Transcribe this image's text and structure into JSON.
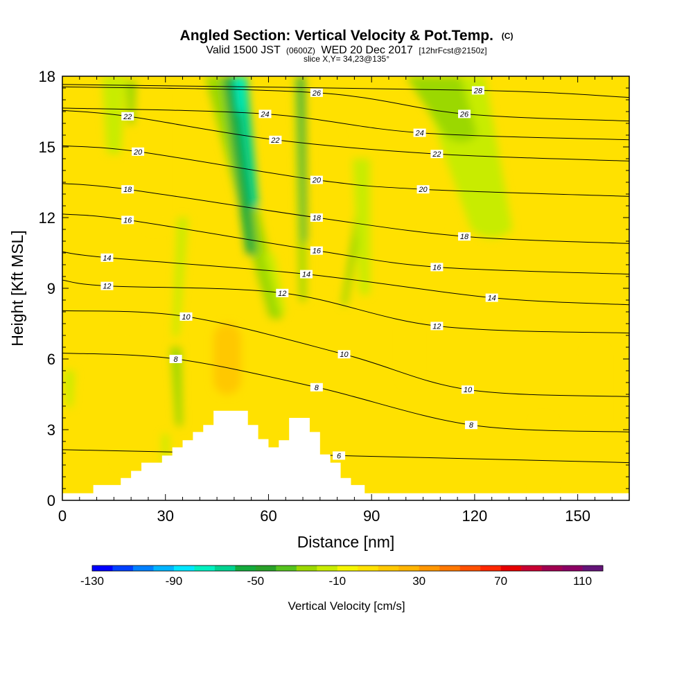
{
  "header": {
    "title": "Angled Section: Vertical Velocity & Pot.Temp.",
    "title_unit": "(C)",
    "valid_prefix": "Valid 1500 JST",
    "valid_utc": "(0600Z)",
    "valid_date": "WED 20 Dec 2017",
    "forecast": "[12hrFcst@2150z]",
    "slice": "slice X,Y= 34,23@135°"
  },
  "chart_data": {
    "type": "heatmap",
    "title": "Angled Section: Vertical Velocity & Pot.Temp.",
    "xlabel": "Distance [nm]",
    "ylabel": "Height [Kft MSL]",
    "xlim": [
      0,
      165
    ],
    "ylim": [
      0,
      18
    ],
    "xticks": [
      0,
      30,
      60,
      90,
      120,
      150
    ],
    "yticks": [
      0,
      3,
      6,
      9,
      12,
      15,
      18
    ],
    "background_value": 0,
    "colors": {
      "plus10": "#ffe100",
      "plus20": "#ffc800",
      "minus10": "#c8ec00",
      "minus20": "#9bd800",
      "minus30": "#55c21e",
      "minus40": "#14aa3c",
      "minus50": "#00d290",
      "minus60": "#00f0c0"
    },
    "updraft_bands": [
      {
        "x": 18,
        "ylo": 1.5,
        "yhi": 7.5,
        "w": 4,
        "value": 15
      },
      {
        "x": 27,
        "ylo": 11.5,
        "yhi": 17.5,
        "w": 4,
        "value": 12
      },
      {
        "x": 48,
        "ylo": 4.5,
        "yhi": 7.5,
        "w": 8,
        "value": 25
      },
      {
        "x": 59,
        "ylo": 2.5,
        "yhi": 9.0,
        "w": 4,
        "value": 12
      },
      {
        "x": 79,
        "ylo": 9.5,
        "yhi": 15.5,
        "w": 3,
        "value": 12
      },
      {
        "x": 101,
        "ylo": 5.0,
        "yhi": 7.5,
        "w": 4,
        "value": 12
      },
      {
        "x": 107,
        "ylo": 11.5,
        "yhi": 16.0,
        "w": 3,
        "value": 14
      },
      {
        "x": 118,
        "ylo": 12.5,
        "yhi": 15.5,
        "w": 3,
        "value": 12
      },
      {
        "x": 140,
        "ylo": 0.5,
        "yhi": 3.5,
        "w": 5,
        "value": 12
      },
      {
        "x": 155,
        "ylo": 3.0,
        "yhi": 6.5,
        "w": 5,
        "value": 12
      }
    ],
    "downdraft_bands": [
      {
        "xt": 45,
        "xb": 62,
        "ytop": 18,
        "ybot": 7.8,
        "w": 7,
        "value": -20
      },
      {
        "xt": 49,
        "xb": 55,
        "ytop": 18,
        "ybot": 10.5,
        "w": 5,
        "value": -38
      },
      {
        "xt": 52,
        "xb": 56,
        "ytop": 18,
        "ybot": 12.5,
        "w": 3.5,
        "value": -47
      },
      {
        "xt": 51.5,
        "xb": 52,
        "ytop": 18,
        "ybot": 16.5,
        "w": 3,
        "value": -58
      },
      {
        "xt": 69,
        "xb": 70,
        "ytop": 18,
        "ybot": 8.5,
        "w": 3,
        "value": -22
      },
      {
        "xt": 69.5,
        "xb": 70.5,
        "ytop": 18,
        "ybot": 11.0,
        "w": 1.8,
        "value": -42
      },
      {
        "xt": 88,
        "xb": 82,
        "ytop": 13.5,
        "ybot": 8.3,
        "w": 2.5,
        "value": -20
      },
      {
        "xt": 87,
        "xb": 88,
        "ytop": 14.5,
        "ybot": 8.8,
        "w": 5,
        "value": -12
      },
      {
        "xt": 15,
        "xb": 15,
        "ytop": 18,
        "ybot": 14.8,
        "w": 7,
        "value": -12
      },
      {
        "xt": 20,
        "xb": 20,
        "ytop": 17.8,
        "ybot": 16.0,
        "w": 3,
        "value": -22
      },
      {
        "xt": 113,
        "xb": 125,
        "ytop": 18,
        "ybot": 11.5,
        "w": 20,
        "value": -12
      },
      {
        "xt": 108,
        "xb": 116,
        "ytop": 18,
        "ybot": 15.5,
        "w": 16,
        "value": -22
      },
      {
        "xt": 60,
        "xb": 64,
        "ytop": 10.5,
        "ybot": 8.0,
        "w": 3,
        "value": -12
      },
      {
        "xt": 35,
        "xb": 33,
        "ytop": 12.0,
        "ybot": 7.0,
        "w": 3,
        "value": -12
      },
      {
        "xt": 33,
        "xb": 34,
        "ytop": 6.5,
        "ybot": 3.2,
        "w": 3,
        "value": -22
      },
      {
        "xt": 2,
        "xb": 2,
        "ytop": 5.5,
        "ybot": 4.0,
        "w": 3,
        "value": -12
      },
      {
        "xt": 30,
        "xb": 30,
        "ytop": 2.8,
        "ybot": 1.0,
        "w": 2,
        "value": -12
      }
    ],
    "terrain": [
      [
        0,
        0.3
      ],
      [
        9,
        0.3
      ],
      [
        9,
        0.65
      ],
      [
        14,
        0.65
      ],
      [
        14,
        0.65
      ],
      [
        17,
        0.65
      ],
      [
        17,
        0.95
      ],
      [
        20,
        0.95
      ],
      [
        20,
        1.25
      ],
      [
        23,
        1.25
      ],
      [
        23,
        1.6
      ],
      [
        26,
        1.6
      ],
      [
        26,
        1.6
      ],
      [
        29,
        1.6
      ],
      [
        29,
        1.9
      ],
      [
        32,
        1.9
      ],
      [
        32,
        2.25
      ],
      [
        35,
        2.25
      ],
      [
        35,
        2.55
      ],
      [
        38,
        2.55
      ],
      [
        38,
        2.9
      ],
      [
        41,
        2.9
      ],
      [
        41,
        3.2
      ],
      [
        44,
        3.2
      ],
      [
        44,
        3.8
      ],
      [
        50,
        3.8
      ],
      [
        50,
        3.8
      ],
      [
        54,
        3.8
      ],
      [
        54,
        3.2
      ],
      [
        57,
        3.2
      ],
      [
        57,
        2.6
      ],
      [
        60,
        2.6
      ],
      [
        60,
        2.25
      ],
      [
        63,
        2.25
      ],
      [
        63,
        2.55
      ],
      [
        66,
        2.55
      ],
      [
        66,
        3.5
      ],
      [
        69,
        3.5
      ],
      [
        69,
        3.5
      ],
      [
        72,
        3.5
      ],
      [
        72,
        2.9
      ],
      [
        75,
        2.9
      ],
      [
        75,
        1.95
      ],
      [
        78,
        1.95
      ],
      [
        78,
        1.6
      ],
      [
        81,
        1.6
      ],
      [
        81,
        0.95
      ],
      [
        84,
        0.95
      ],
      [
        84,
        0.65
      ],
      [
        88,
        0.65
      ],
      [
        88,
        0.3
      ],
      [
        165,
        0.3
      ]
    ],
    "isentropes": {
      "label_suffix": "",
      "lines": [
        {
          "value": 6,
          "labels": [
            {
              "x": 80.5,
              "y": 1.9
            }
          ]
        },
        {
          "value": 8,
          "labels": [
            {
              "x": 33,
              "y": 6.0
            },
            {
              "x": 74,
              "y": 4.8
            },
            {
              "x": 119,
              "y": 3.2
            }
          ]
        },
        {
          "value": 10,
          "labels": [
            {
              "x": 36,
              "y": 7.8
            },
            {
              "x": 82,
              "y": 6.2
            },
            {
              "x": 118,
              "y": 4.7
            }
          ]
        },
        {
          "value": 12,
          "labels": [
            {
              "x": 13,
              "y": 9.1
            },
            {
              "x": 64,
              "y": 8.8
            },
            {
              "x": 109,
              "y": 7.4
            }
          ]
        },
        {
          "value": 14,
          "labels": [
            {
              "x": 13,
              "y": 10.3
            },
            {
              "x": 71,
              "y": 9.6
            },
            {
              "x": 125,
              "y": 8.6
            }
          ]
        },
        {
          "value": 16,
          "labels": [
            {
              "x": 19,
              "y": 11.9
            },
            {
              "x": 74,
              "y": 10.6
            },
            {
              "x": 109,
              "y": 9.9
            }
          ]
        },
        {
          "value": 18,
          "labels": [
            {
              "x": 19,
              "y": 13.2
            },
            {
              "x": 74,
              "y": 12.0
            },
            {
              "x": 117,
              "y": 11.2
            }
          ]
        },
        {
          "value": 20,
          "labels": [
            {
              "x": 22,
              "y": 14.8
            },
            {
              "x": 74,
              "y": 13.6
            },
            {
              "x": 105,
              "y": 13.2
            }
          ]
        },
        {
          "value": 22,
          "labels": [
            {
              "x": 19,
              "y": 16.3
            },
            {
              "x": 62,
              "y": 15.3
            },
            {
              "x": 109,
              "y": 14.7
            }
          ]
        },
        {
          "value": 24,
          "labels": [
            {
              "x": 59,
              "y": 16.4
            },
            {
              "x": 104,
              "y": 15.6
            }
          ]
        },
        {
          "value": 26,
          "labels": [
            {
              "x": 74,
              "y": 17.3
            },
            {
              "x": 117,
              "y": 16.4
            }
          ]
        },
        {
          "value": 28,
          "labels": [
            {
              "x": 121,
              "y": 17.4
            }
          ]
        }
      ]
    },
    "colorbar": {
      "title": "Vertical Velocity [cm/s]",
      "min": -130,
      "max": 120,
      "step": 10,
      "tick_labels": [
        "-130",
        "-90",
        "-50",
        "-10",
        "30",
        "70",
        "110"
      ],
      "tick_values": [
        -130,
        -90,
        -50,
        -10,
        30,
        70,
        110
      ],
      "colors": [
        "#0000ff",
        "#0040ff",
        "#0080ff",
        "#00b4ff",
        "#00e6ff",
        "#00f0c0",
        "#00d290",
        "#14aa3c",
        "#29a029",
        "#55c21e",
        "#9bd800",
        "#c8ec00",
        "#f5f500",
        "#ffe100",
        "#ffc800",
        "#ffb400",
        "#ff9600",
        "#ff7800",
        "#ff5000",
        "#ff2800",
        "#e60000",
        "#c80032",
        "#a00050",
        "#8c0064",
        "#641478"
      ]
    }
  }
}
